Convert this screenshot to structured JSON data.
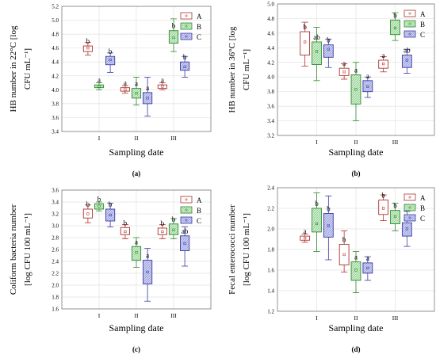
{
  "chart_data": [
    {
      "type": "box",
      "panel_label": "(a)",
      "xlabel": "Sampling date",
      "ylabel_lines": [
        "HB number in 22°C [log",
        "CFU mL⁻¹]"
      ],
      "ylim": [
        3.4,
        5.2
      ],
      "yticks": [
        "3.4",
        "3.6",
        "3.8",
        "4.0",
        "4.2",
        "4.4",
        "4.6",
        "4.8",
        "5.0",
        "5.2"
      ],
      "categories": [
        "I",
        "II",
        "III"
      ],
      "legend": [
        "A",
        "B",
        "C"
      ],
      "series": [
        {
          "name": "A",
          "boxes": [
            {
              "whisker": [
                4.5,
                4.68
              ],
              "box": [
                4.55,
                4.63
              ],
              "center": 4.6,
              "letter": "b"
            },
            {
              "whisker": [
                3.95,
                4.06
              ],
              "box": [
                3.98,
                4.03
              ],
              "center": 4.0,
              "letter": "a"
            },
            {
              "whisker": [
                4.0,
                4.1
              ],
              "box": [
                4.02,
                4.07
              ],
              "center": 4.05,
              "letter": "a"
            }
          ]
        },
        {
          "name": "B",
          "boxes": [
            {
              "whisker": [
                4.0,
                4.1
              ],
              "box": [
                4.03,
                4.07
              ],
              "center": 4.05,
              "letter": "a"
            },
            {
              "whisker": [
                3.78,
                4.18
              ],
              "box": [
                3.88,
                4.02
              ],
              "center": 3.95,
              "letter": "a"
            },
            {
              "whisker": [
                4.55,
                5.02
              ],
              "box": [
                4.67,
                4.85
              ],
              "center": 4.75,
              "letter": "b"
            }
          ]
        },
        {
          "name": "C",
          "boxes": [
            {
              "whisker": [
                4.25,
                4.53
              ],
              "box": [
                4.36,
                4.48
              ],
              "center": 4.43,
              "letter": "b"
            },
            {
              "whisker": [
                3.62,
                4.18
              ],
              "box": [
                3.8,
                3.96
              ],
              "center": 3.88,
              "letter": "a"
            },
            {
              "whisker": [
                4.18,
                4.48
              ],
              "box": [
                4.28,
                4.4
              ],
              "center": 4.33,
              "letter": "b"
            }
          ]
        }
      ]
    },
    {
      "type": "box",
      "panel_label": "(b)",
      "xlabel": "Sampling date",
      "ylabel_lines": [
        "HB number in 36°C [log",
        "CFU mL⁻¹]"
      ],
      "ylim": [
        3.2,
        5.0
      ],
      "yticks": [
        "3.2",
        "3.4",
        "3.6",
        "3.8",
        "4.0",
        "4.2",
        "4.4",
        "4.6",
        "4.8",
        "5.0"
      ],
      "categories": [
        "I",
        "II",
        "III"
      ],
      "legend": [
        "A",
        "B",
        "C"
      ],
      "series": [
        {
          "name": "A",
          "boxes": [
            {
              "whisker": [
                4.15,
                4.75
              ],
              "box": [
                4.3,
                4.62
              ],
              "center": 4.48,
              "letter": "b"
            },
            {
              "whisker": [
                3.97,
                4.18
              ],
              "box": [
                4.02,
                4.12
              ],
              "center": 4.07,
              "letter": "a"
            },
            {
              "whisker": [
                4.07,
                4.28
              ],
              "box": [
                4.12,
                4.23
              ],
              "center": 4.18,
              "letter": "a"
            }
          ]
        },
        {
          "name": "B",
          "boxes": [
            {
              "whisker": [
                3.95,
                4.68
              ],
              "box": [
                4.17,
                4.48
              ],
              "center": 4.35,
              "letter": "ab"
            },
            {
              "whisker": [
                3.4,
                4.2
              ],
              "box": [
                3.63,
                4.03
              ],
              "center": 3.83,
              "letter": "a"
            },
            {
              "whisker": [
                4.5,
                4.88
              ],
              "box": [
                4.58,
                4.78
              ],
              "center": 4.67,
              "letter": "b"
            }
          ]
        },
        {
          "name": "C",
          "boxes": [
            {
              "whisker": [
                4.13,
                4.52
              ],
              "box": [
                4.27,
                4.44
              ],
              "center": 4.38,
              "letter": "b"
            },
            {
              "whisker": [
                3.72,
                4.0
              ],
              "box": [
                3.8,
                3.95
              ],
              "center": 3.87,
              "letter": "a"
            },
            {
              "whisker": [
                4.05,
                4.38
              ],
              "box": [
                4.13,
                4.3
              ],
              "center": 4.23,
              "letter": "ab"
            }
          ]
        }
      ]
    },
    {
      "type": "box",
      "panel_label": "(c)",
      "xlabel": "Sampling date",
      "ylabel_lines": [
        "Coliform bacteria number",
        "[log CFU 100 mL⁻¹]"
      ],
      "ylim": [
        1.6,
        3.6
      ],
      "yticks": [
        "1.6",
        "1.8",
        "2.0",
        "2.2",
        "2.4",
        "2.6",
        "2.8",
        "3.0",
        "3.2",
        "3.4",
        "3.6"
      ],
      "categories": [
        "I",
        "II",
        "III"
      ],
      "legend": [
        "A",
        "B",
        "C"
      ],
      "series": [
        {
          "name": "A",
          "boxes": [
            {
              "whisker": [
                3.05,
                3.35
              ],
              "box": [
                3.13,
                3.28
              ],
              "center": 3.2,
              "letter": "b"
            },
            {
              "whisker": [
                2.78,
                3.02
              ],
              "box": [
                2.85,
                2.97
              ],
              "center": 2.9,
              "letter": "b"
            },
            {
              "whisker": [
                2.78,
                3.02
              ],
              "box": [
                2.85,
                2.96
              ],
              "center": 2.9,
              "letter": "b"
            }
          ]
        },
        {
          "name": "B",
          "boxes": [
            {
              "whisker": [
                3.25,
                3.4
              ],
              "box": [
                3.28,
                3.37
              ],
              "center": 3.33,
              "letter": "b"
            },
            {
              "whisker": [
                2.3,
                2.8
              ],
              "box": [
                2.42,
                2.65
              ],
              "center": 2.55,
              "letter": "a"
            },
            {
              "whisker": [
                2.78,
                3.12
              ],
              "box": [
                2.85,
                3.03
              ],
              "center": 2.93,
              "letter": "b"
            }
          ]
        },
        {
          "name": "C",
          "boxes": [
            {
              "whisker": [
                2.98,
                3.38
              ],
              "box": [
                3.08,
                3.28
              ],
              "center": 3.18,
              "letter": "b"
            },
            {
              "whisker": [
                1.73,
                2.62
              ],
              "box": [
                2.02,
                2.42
              ],
              "center": 2.22,
              "letter": "a"
            },
            {
              "whisker": [
                2.32,
                2.98
              ],
              "box": [
                2.58,
                2.83
              ],
              "center": 2.7,
              "letter": "ab"
            }
          ]
        }
      ]
    },
    {
      "type": "box",
      "panel_label": "(d)",
      "xlabel": "Sampling date",
      "ylabel_lines": [
        "Fecal enterococci number",
        "[log CFU 100 mL⁻¹]"
      ],
      "ylim": [
        1.2,
        2.4
      ],
      "yticks": [
        "1.2",
        "1.4",
        "1.6",
        "1.8",
        "2.0",
        "2.2",
        "2.4"
      ],
      "categories": [
        "I",
        "II",
        "III"
      ],
      "legend": [
        "A",
        "B",
        "C"
      ],
      "series": [
        {
          "name": "A",
          "boxes": [
            {
              "whisker": [
                1.87,
                1.95
              ],
              "box": [
                1.89,
                1.93
              ],
              "center": 1.91,
              "letter": "a"
            },
            {
              "whisker": [
                1.58,
                1.98
              ],
              "box": [
                1.65,
                1.85
              ],
              "center": 1.75,
              "letter": "b"
            },
            {
              "whisker": [
                2.08,
                2.33
              ],
              "box": [
                2.14,
                2.28
              ],
              "center": 2.2,
              "letter": "b"
            }
          ]
        },
        {
          "name": "B",
          "boxes": [
            {
              "whisker": [
                1.78,
                2.35
              ],
              "box": [
                1.97,
                2.2
              ],
              "center": 2.05,
              "letter": "b"
            },
            {
              "whisker": [
                1.38,
                1.78
              ],
              "box": [
                1.5,
                1.68
              ],
              "center": 1.6,
              "letter": "a"
            },
            {
              "whisker": [
                1.98,
                2.25
              ],
              "box": [
                2.05,
                2.18
              ],
              "center": 2.12,
              "letter": "b"
            }
          ]
        },
        {
          "name": "C",
          "boxes": [
            {
              "whisker": [
                1.7,
                2.32
              ],
              "box": [
                1.92,
                2.15
              ],
              "center": 2.03,
              "letter": "b"
            },
            {
              "whisker": [
                1.5,
                1.73
              ],
              "box": [
                1.57,
                1.67
              ],
              "center": 1.62,
              "letter": "a"
            },
            {
              "whisker": [
                1.83,
                2.17
              ],
              "box": [
                1.93,
                2.06
              ],
              "center": 2.0,
              "letter": "ab"
            }
          ]
        }
      ]
    }
  ],
  "colors": {
    "A": {
      "stroke": "#b03030",
      "fill": "#ffffff"
    },
    "B": {
      "stroke": "#2e8b2e",
      "fill": "#c8ecc8"
    },
    "C": {
      "stroke": "#3a3aa8",
      "fill": "#c8cdf0"
    },
    "grid": "#e2e2e2",
    "axis": "#7a7a7a"
  }
}
